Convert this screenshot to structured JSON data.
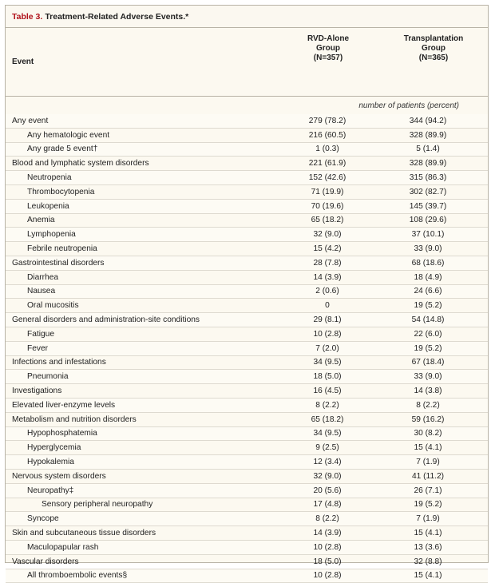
{
  "table": {
    "number": "Table 3.",
    "title": "Treatment-Related Adverse Events.*",
    "event_header": "Event",
    "col1": {
      "line1": "RVD-Alone",
      "line2": "Group",
      "line3": "(N=357)"
    },
    "col2": {
      "line1": "Transplantation",
      "line2": "Group",
      "line3": "(N=365)"
    },
    "unit_label": "number of patients (percent)",
    "rows": [
      {
        "event": "Any event",
        "level": 0,
        "rvd": "279 (78.2)",
        "tx": "344 (94.2)"
      },
      {
        "event": "Any hematologic event",
        "level": 1,
        "rvd": "216 (60.5)",
        "tx": "328 (89.9)"
      },
      {
        "event": "Any grade 5 event†",
        "level": 1,
        "rvd": "1 (0.3)",
        "tx": "5 (1.4)"
      },
      {
        "event": "Blood and lymphatic system disorders",
        "level": 0,
        "rvd": "221 (61.9)",
        "tx": "328 (89.9)"
      },
      {
        "event": "Neutropenia",
        "level": 1,
        "rvd": "152 (42.6)",
        "tx": "315 (86.3)"
      },
      {
        "event": "Thrombocytopenia",
        "level": 1,
        "rvd": "71 (19.9)",
        "tx": "302 (82.7)"
      },
      {
        "event": "Leukopenia",
        "level": 1,
        "rvd": "70 (19.6)",
        "tx": "145 (39.7)"
      },
      {
        "event": "Anemia",
        "level": 1,
        "rvd": "65 (18.2)",
        "tx": "108 (29.6)"
      },
      {
        "event": "Lymphopenia",
        "level": 1,
        "rvd": "32 (9.0)",
        "tx": "37 (10.1)"
      },
      {
        "event": "Febrile neutropenia",
        "level": 1,
        "rvd": "15 (4.2)",
        "tx": "33 (9.0)"
      },
      {
        "event": "Gastrointestinal disorders",
        "level": 0,
        "rvd": "28 (7.8)",
        "tx": "68 (18.6)"
      },
      {
        "event": "Diarrhea",
        "level": 1,
        "rvd": "14 (3.9)",
        "tx": "18 (4.9)"
      },
      {
        "event": "Nausea",
        "level": 1,
        "rvd": "2 (0.6)",
        "tx": "24 (6.6)"
      },
      {
        "event": "Oral mucositis",
        "level": 1,
        "rvd": "0",
        "tx": "19 (5.2)"
      },
      {
        "event": "General disorders and administration-site conditions",
        "level": 0,
        "rvd": "29 (8.1)",
        "tx": "54 (14.8)"
      },
      {
        "event": "Fatigue",
        "level": 1,
        "rvd": "10 (2.8)",
        "tx": "22 (6.0)"
      },
      {
        "event": "Fever",
        "level": 1,
        "rvd": "7 (2.0)",
        "tx": "19 (5.2)"
      },
      {
        "event": "Infections and infestations",
        "level": 0,
        "rvd": "34 (9.5)",
        "tx": "67 (18.4)"
      },
      {
        "event": "Pneumonia",
        "level": 1,
        "rvd": "18 (5.0)",
        "tx": "33 (9.0)"
      },
      {
        "event": "Investigations",
        "level": 0,
        "rvd": "16 (4.5)",
        "tx": "14 (3.8)"
      },
      {
        "event": "Elevated liver-enzyme levels",
        "level": 0,
        "rvd": "8 (2.2)",
        "tx": "8 (2.2)"
      },
      {
        "event": "Metabolism and nutrition disorders",
        "level": 0,
        "rvd": "65 (18.2)",
        "tx": "59 (16.2)"
      },
      {
        "event": "Hypophosphatemia",
        "level": 1,
        "rvd": "34 (9.5)",
        "tx": "30 (8.2)"
      },
      {
        "event": "Hyperglycemia",
        "level": 1,
        "rvd": "9 (2.5)",
        "tx": "15 (4.1)"
      },
      {
        "event": "Hypokalemia",
        "level": 1,
        "rvd": "12 (3.4)",
        "tx": "7 (1.9)"
      },
      {
        "event": "Nervous system disorders",
        "level": 0,
        "rvd": "32 (9.0)",
        "tx": "41 (11.2)"
      },
      {
        "event": "Neuropathy‡",
        "level": 1,
        "rvd": "20 (5.6)",
        "tx": "26 (7.1)"
      },
      {
        "event": "Sensory peripheral neuropathy",
        "level": 2,
        "rvd": "17 (4.8)",
        "tx": "19 (5.2)"
      },
      {
        "event": "Syncope",
        "level": 1,
        "rvd": "8 (2.2)",
        "tx": "7 (1.9)"
      },
      {
        "event": "Skin and subcutaneous tissue disorders",
        "level": 0,
        "rvd": "14 (3.9)",
        "tx": "15 (4.1)"
      },
      {
        "event": "Maculopapular rash",
        "level": 1,
        "rvd": "10 (2.8)",
        "tx": "13 (3.6)"
      },
      {
        "event": "Vascular disorders",
        "level": 0,
        "rvd": "18 (5.0)",
        "tx": "32 (8.8)"
      },
      {
        "event": "All thromboembolic events§",
        "level": 1,
        "rvd": "10 (2.8)",
        "tx": "15 (4.1)"
      }
    ]
  }
}
